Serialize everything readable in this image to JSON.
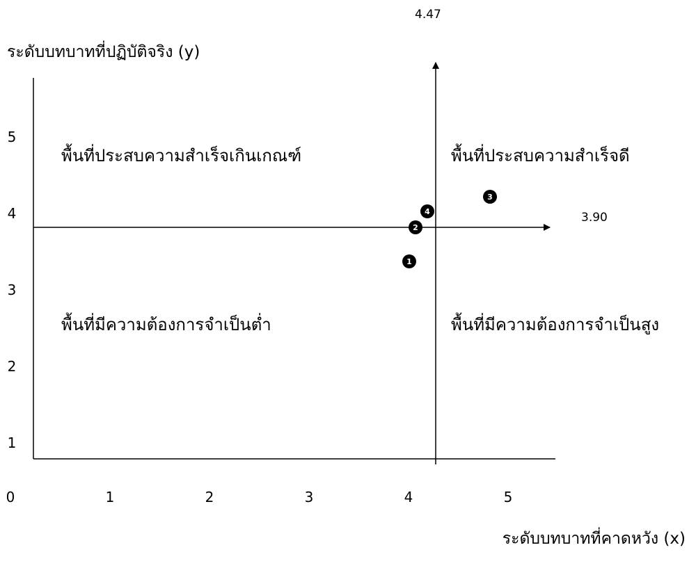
{
  "chart_data": {
    "type": "scatter",
    "title": "",
    "ylabel": "ระดับบทบาทที่ปฏิบัติจริง (y)",
    "xlabel": "ระดับบทบาทที่คาดหวัง (x)",
    "xlim": [
      0,
      5.5
    ],
    "ylim": [
      0,
      5.5
    ],
    "x_ticks": [
      "0",
      "1",
      "2",
      "3",
      "4",
      "5"
    ],
    "y_ticks": [
      "1",
      "2",
      "3",
      "4",
      "5"
    ],
    "reference_lines": {
      "x_mean": 4.47,
      "x_mean_label": "4.47",
      "y_mean": 3.9,
      "y_mean_label": "3.90"
    },
    "quadrants": {
      "top_left": "พื้นที่ประสบความสำเร็จเกินเกณฑ์",
      "top_right": "พื้นที่ประสบความสำเร็จดี",
      "bottom_left": "พื้นที่มีความต้องการจำเป็นต่ำ",
      "bottom_right": "พื้นที่มีความต้องการจำเป็นสูง"
    },
    "points": [
      {
        "label": "1",
        "x": 4.25,
        "y": 3.4
      },
      {
        "label": "2",
        "x": 4.3,
        "y": 3.9
      },
      {
        "label": "3",
        "x": 5.1,
        "y": 4.3
      },
      {
        "label": "4",
        "x": 4.4,
        "y": 4.1
      }
    ]
  }
}
